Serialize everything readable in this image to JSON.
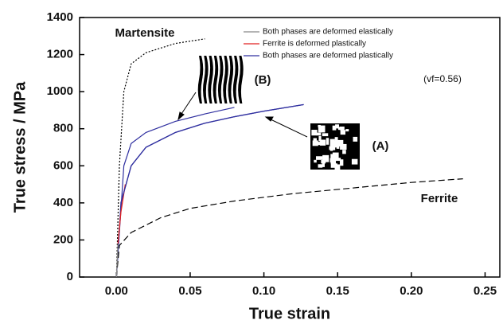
{
  "chart_data": {
    "type": "line",
    "xlabel": "True strain",
    "ylabel": "True stress / MPa",
    "xlim": [
      -0.025,
      0.26
    ],
    "ylim": [
      0,
      1400
    ],
    "xticks": [
      {
        "value": 0,
        "label": "0.00"
      },
      {
        "value": 0.05,
        "label": "0.05"
      },
      {
        "value": 0.1,
        "label": "0.10"
      },
      {
        "value": 0.15,
        "label": "0.15"
      },
      {
        "value": 0.2,
        "label": "0.20"
      },
      {
        "value": 0.25,
        "label": "0.25"
      }
    ],
    "yticks": [
      0,
      200,
      400,
      600,
      800,
      1000,
      1200,
      1400
    ],
    "series": [
      {
        "name": "Both phases are deformed elastically",
        "color": "#888888",
        "x": [
          0,
          0.001
        ],
        "values": [
          0,
          180
        ]
      },
      {
        "name": "Ferrite is deformed plastically",
        "color": "#e02020",
        "x": [
          0.001,
          0.003,
          0.006
        ],
        "values": [
          180,
          350,
          500
        ]
      },
      {
        "name": "Both phases are deformed plastically",
        "color": "#3030a0",
        "x": [
          0.003,
          0.01,
          0.02,
          0.04,
          0.06,
          0.08,
          0.1,
          0.127
        ],
        "values": [
          400,
          600,
          700,
          780,
          830,
          865,
          895,
          930
        ]
      }
    ],
    "curves": [
      {
        "label": "Martensite",
        "color": "#000000",
        "dash": "2,2",
        "x": [
          0,
          0.002,
          0.005,
          0.01,
          0.02,
          0.04,
          0.06
        ],
        "values": [
          0,
          600,
          1000,
          1150,
          1210,
          1260,
          1285
        ]
      },
      {
        "label": "(B)",
        "color": "#3030a0",
        "dash": "none",
        "x": [
          0,
          0.005,
          0.01,
          0.02,
          0.04,
          0.06,
          0.08
        ],
        "values": [
          0,
          600,
          720,
          780,
          840,
          880,
          915
        ]
      },
      {
        "label": "(A)",
        "color": "#3030a0",
        "dash": "none",
        "x": [
          0,
          0.003,
          0.01,
          0.02,
          0.04,
          0.06,
          0.08,
          0.1,
          0.127
        ],
        "values": [
          0,
          400,
          600,
          700,
          780,
          830,
          865,
          895,
          930
        ]
      },
      {
        "label": "Ferrite",
        "color": "#000000",
        "dash": "8,4",
        "x": [
          0,
          0.002,
          0.01,
          0.03,
          0.05,
          0.08,
          0.12,
          0.16,
          0.2,
          0.235
        ],
        "values": [
          0,
          170,
          240,
          320,
          370,
          410,
          450,
          480,
          510,
          530
        ]
      }
    ],
    "annotation": "(vf=0.56)"
  }
}
